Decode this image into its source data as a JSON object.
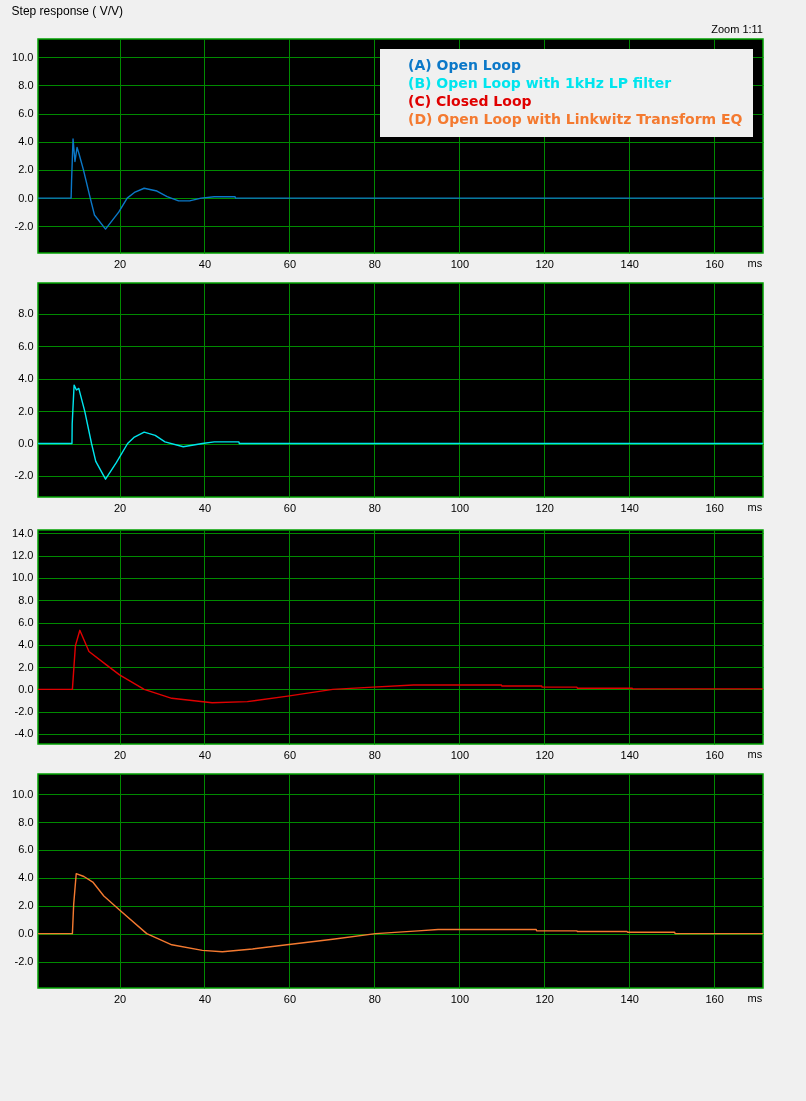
{
  "chart_data": [
    {
      "type": "line",
      "title": "Step response ( V/V)",
      "annotations": [
        "Zoom 1:11"
      ],
      "xlabel": "ms",
      "legend": "top right",
      "grid": true,
      "line_style": "solid",
      "xlim": [
        0.8,
        171.5
      ],
      "xticks": [
        20,
        40,
        60,
        80,
        100,
        120,
        140,
        160
      ],
      "ylim": [
        -3.9,
        11.3
      ],
      "yticks": [
        {
          "value": -2,
          "label": "-2.0"
        },
        {
          "value": 0,
          "label": "0.0"
        },
        {
          "value": 2,
          "label": "2.0"
        },
        {
          "value": 4,
          "label": "4.0"
        },
        {
          "value": 6,
          "label": "6.0"
        },
        {
          "value": 8,
          "label": "8.0"
        },
        {
          "value": 10,
          "label": "10.0"
        }
      ],
      "x": [
        0.8,
        8.6,
        8.7,
        9.05,
        9.5,
        10.0,
        10.5,
        11.5,
        13.1,
        14.1,
        16.7,
        19.8,
        21.8,
        23.5,
        25.8,
        28.8,
        31.2,
        33.9,
        36.5,
        39.2,
        42.3,
        47.2,
        47.3,
        171.5
      ],
      "series": [
        {
          "name": "(A) Open Loop",
          "color": "#0b78c8",
          "values": [
            0,
            0,
            1.2,
            4.2,
            2.6,
            3.6,
            3.1,
            2.0,
            0,
            -1.2,
            -2.2,
            -1.0,
            0,
            0.4,
            0.7,
            0.5,
            0.1,
            -0.2,
            -0.2,
            0,
            0.1,
            0.1,
            0,
            0
          ]
        }
      ]
    },
    {
      "type": "line",
      "xlabel": "ms",
      "grid": true,
      "line_style": "solid",
      "xlim": [
        0.8,
        171.5
      ],
      "xticks": [
        20,
        40,
        60,
        80,
        100,
        120,
        140,
        160
      ],
      "ylim": [
        -3.3,
        9.9
      ],
      "yticks": [
        {
          "value": -2,
          "label": "-2.0"
        },
        {
          "value": 0,
          "label": "0.0"
        },
        {
          "value": 2,
          "label": "2.0"
        },
        {
          "value": 4,
          "label": "4.0"
        },
        {
          "value": 6,
          "label": "6.0"
        },
        {
          "value": 8,
          "label": "8.0"
        }
      ],
      "x": [
        0.8,
        8.8,
        8.85,
        9.3,
        9.85,
        10.4,
        11.8,
        13.4,
        14.4,
        16.7,
        19.2,
        21.9,
        23.5,
        25.8,
        28.4,
        30.7,
        35.0,
        39.5,
        42.3,
        48.1,
        48.2,
        171.5
      ],
      "series": [
        {
          "name": "(B) Open Loop with 1kHz LP filter",
          "color": "#00e5ee",
          "values": [
            0,
            0,
            1.2,
            3.6,
            3.3,
            3.4,
            2.0,
            0,
            -1.1,
            -2.2,
            -1.2,
            0,
            0.4,
            0.7,
            0.5,
            0.1,
            -0.2,
            0,
            0.1,
            0.1,
            0,
            0
          ]
        }
      ]
    },
    {
      "type": "line",
      "xlabel": "ms",
      "grid": true,
      "line_style": "solid",
      "xlim": [
        0.8,
        171.5
      ],
      "xticks": [
        20,
        40,
        60,
        80,
        100,
        120,
        140,
        160
      ],
      "ylim": [
        -4.9,
        14.3
      ],
      "yticks": [
        {
          "value": -4,
          "label": "-4.0"
        },
        {
          "value": -2,
          "label": "-2.0"
        },
        {
          "value": 0,
          "label": "0.0"
        },
        {
          "value": 2,
          "label": "2.0"
        },
        {
          "value": 4,
          "label": "4.0"
        },
        {
          "value": 6,
          "label": "6.0"
        },
        {
          "value": 8,
          "label": "8.0"
        },
        {
          "value": 10,
          "label": "10.0"
        },
        {
          "value": 12,
          "label": "12.0"
        },
        {
          "value": 14,
          "label": "14.0"
        }
      ],
      "x": [
        0.8,
        8.9,
        9.6,
        10.65,
        12.8,
        16.9,
        20,
        25.8,
        32.3,
        41.8,
        50.1,
        59.6,
        70.2,
        79.7,
        89.2,
        109.9,
        110,
        119.4,
        119.5,
        127.7,
        127.8,
        140.7,
        140.8,
        171.5
      ],
      "series": [
        {
          "name": "(C) Closed Loop",
          "color": "#e00000",
          "values": [
            0,
            0,
            3.9,
            5.3,
            3.4,
            2.2,
            1.3,
            0,
            -0.8,
            -1.2,
            -1.1,
            -0.6,
            0,
            0.2,
            0.4,
            0.4,
            0.3,
            0.3,
            0.2,
            0.2,
            0.1,
            0.1,
            0.05,
            0.05
          ]
        }
      ]
    },
    {
      "type": "line",
      "xlabel": "ms",
      "grid": true,
      "line_style": "solid",
      "xlim": [
        0.8,
        171.5
      ],
      "xticks": [
        20,
        40,
        60,
        80,
        100,
        120,
        140,
        160
      ],
      "ylim": [
        -3.9,
        11.45
      ],
      "yticks": [
        {
          "value": -2,
          "label": "-2.0"
        },
        {
          "value": 0,
          "label": "0.0"
        },
        {
          "value": 2,
          "label": "2.0"
        },
        {
          "value": 4,
          "label": "4.0"
        },
        {
          "value": 6,
          "label": "6.0"
        },
        {
          "value": 8,
          "label": "8.0"
        },
        {
          "value": 10,
          "label": "10.0"
        }
      ],
      "x": [
        0.8,
        8.9,
        9.2,
        9.8,
        11.6,
        13.7,
        16.3,
        20,
        26.4,
        32.3,
        39.5,
        44.2,
        51.3,
        59.4,
        70.2,
        80.3,
        90.3,
        95,
        118.1,
        118.2,
        127.7,
        127.8,
        139.5,
        139.6,
        150.7,
        150.8,
        171.5
      ],
      "series": [
        {
          "name": "(D) Open Loop with Linkwitz Transform EQ",
          "color": "#f47a30",
          "values": [
            0,
            0,
            2.1,
            4.3,
            4.1,
            3.7,
            2.7,
            1.7,
            0,
            -0.8,
            -1.2,
            -1.3,
            -1.1,
            -0.8,
            -0.4,
            0,
            0.2,
            0.3,
            0.3,
            0.2,
            0.2,
            0.15,
            0.15,
            0.1,
            0.1,
            0,
            0
          ]
        }
      ]
    }
  ]
}
